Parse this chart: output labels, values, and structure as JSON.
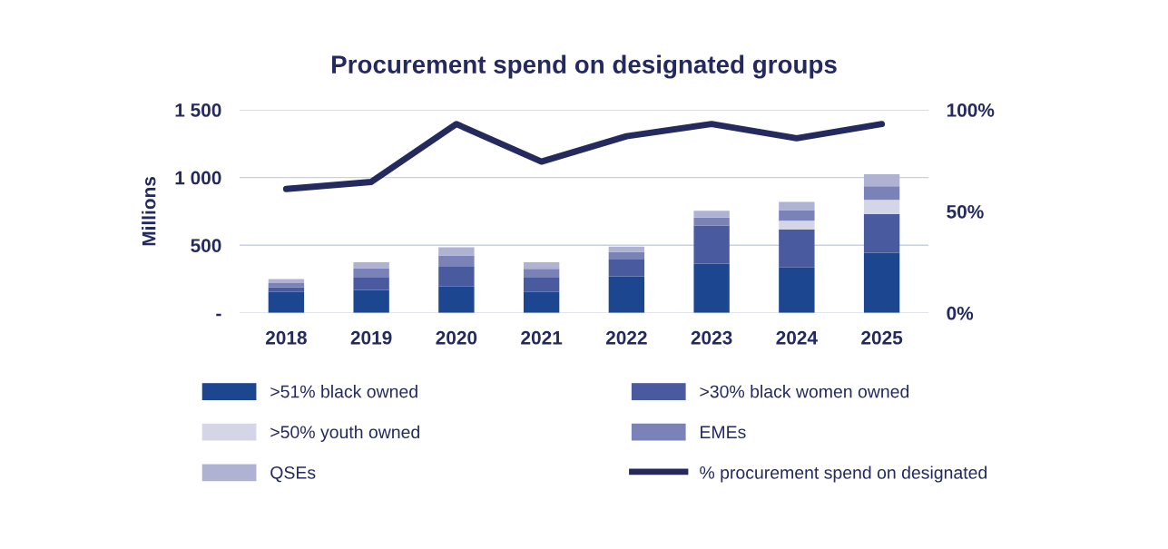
{
  "chart_data": {
    "type": "bar",
    "stacked": true,
    "title": "Procurement spend on designated groups",
    "ylabel": "Millions",
    "categories": [
      "2018",
      "2019",
      "2020",
      "2021",
      "2022",
      "2023",
      "2024",
      "2025"
    ],
    "series": [
      {
        "name": ">51% black owned",
        "color": "#1d4690",
        "values": [
          155,
          170,
          195,
          155,
          270,
          365,
          335,
          445
        ]
      },
      {
        "name": ">30% black women owned",
        "color": "#4a5a9e",
        "values": [
          35,
          95,
          145,
          105,
          125,
          280,
          280,
          285
        ]
      },
      {
        "name": ">50% youth owned",
        "color": "#d4d6e8",
        "values": [
          0,
          0,
          0,
          0,
          0,
          0,
          65,
          105
        ]
      },
      {
        "name": "EMEs",
        "color": "#7b82b8",
        "values": [
          30,
          65,
          85,
          65,
          55,
          60,
          80,
          100
        ]
      },
      {
        "name": "QSEs",
        "color": "#b0b2d4",
        "values": [
          30,
          45,
          60,
          50,
          40,
          50,
          60,
          90
        ]
      },
      {
        "name": "% procurement spend on designated",
        "type": "line",
        "axis": "y2",
        "color": "#242a5e",
        "values": [
          61,
          64.5,
          93,
          74.5,
          87,
          93,
          86,
          93
        ]
      }
    ],
    "ylim": [
      0,
      1500
    ],
    "yticks": [
      {
        "value": 0,
        "label": "-"
      },
      500,
      {
        "value": 1000,
        "label": "1 000"
      },
      {
        "value": 1500,
        "label": "1 500"
      }
    ],
    "y2lim": [
      0,
      100
    ],
    "y2ticks": [
      {
        "value": 0,
        "label": "0%"
      },
      {
        "value": 50,
        "label": "50%"
      },
      {
        "value": 100,
        "label": "100%"
      }
    ],
    "grid": "y",
    "legend": "bottom",
    "marker": "none",
    "line_style": "solid"
  }
}
